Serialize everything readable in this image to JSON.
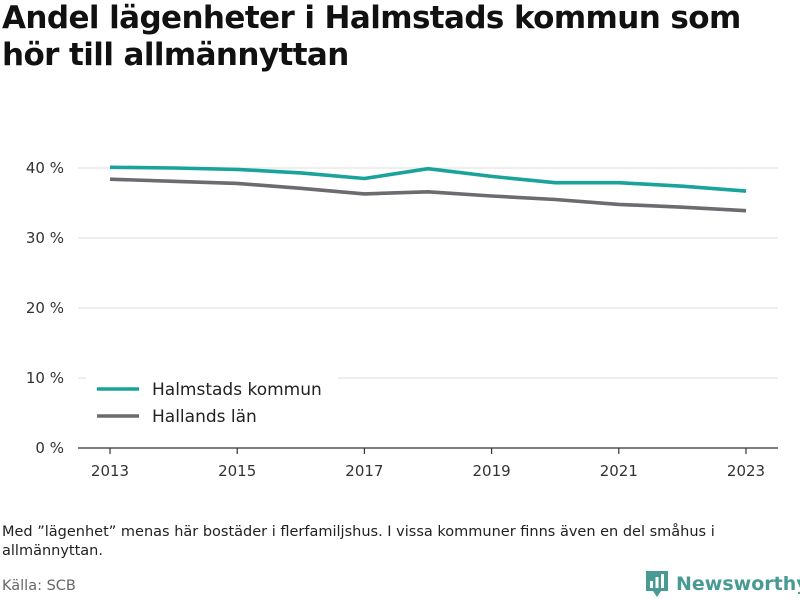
{
  "title": "Andel lägenheter i Halmstads kommun som hör till allmännyttan",
  "footnote": "Med ”lägenhet” menas här bostäder i flerfamiljshus. I vissa kommuner finns även en del småhus i allmännyttan.",
  "source": "Källa: SCB",
  "brand": {
    "name": "Newsworthy",
    "icon": "newsworthy-logo-icon",
    "color": "#4a9a94"
  },
  "chart_data": {
    "type": "line",
    "x": [
      2013,
      2014,
      2015,
      2016,
      2017,
      2018,
      2019,
      2020,
      2021,
      2022,
      2023
    ],
    "series": [
      {
        "name": "Halmstads kommun",
        "color": "#1aa39b",
        "values": [
          40.1,
          40.0,
          39.8,
          39.3,
          38.5,
          39.9,
          38.8,
          37.9,
          37.9,
          37.4,
          36.7
        ]
      },
      {
        "name": "Hallands län",
        "color": "#6b6b70",
        "values": [
          38.4,
          38.1,
          37.8,
          37.1,
          36.3,
          36.6,
          36.0,
          35.5,
          34.8,
          34.4,
          33.9
        ]
      }
    ],
    "xticks": [
      2013,
      2015,
      2017,
      2019,
      2021,
      2023
    ],
    "xtick_labels": [
      "2013",
      "2015",
      "2017",
      "2019",
      "2021",
      "2023"
    ],
    "yticks": [
      0,
      10,
      20,
      30,
      40
    ],
    "ytick_labels": [
      "0 %",
      "10 %",
      "20 %",
      "30 %",
      "40 %"
    ],
    "xlim": [
      2013,
      2023
    ],
    "ylim": [
      0,
      45
    ],
    "grid": true,
    "legend_position": "bottom-left",
    "xlabel": "",
    "ylabel": ""
  }
}
